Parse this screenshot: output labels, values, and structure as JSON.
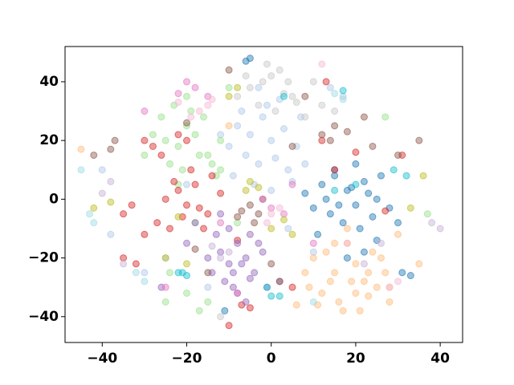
{
  "chart_data": {
    "type": "scatter",
    "xlim": [
      -48.8,
      45.3
    ],
    "ylim": [
      -48.8,
      52
    ],
    "xticks": [
      {
        "value": -40,
        "label": "−40"
      },
      {
        "value": -20,
        "label": "−20"
      },
      0,
      20,
      40
    ],
    "yticks": [
      {
        "value": -40,
        "label": "−40"
      },
      {
        "value": -20,
        "label": "−20"
      },
      0,
      20,
      40
    ],
    "series": [
      {
        "color": "#1f77b4",
        "x": [
          12,
          15,
          18,
          20,
          22,
          25,
          10,
          14,
          17,
          21,
          24,
          28,
          8,
          13,
          16,
          19,
          23,
          26,
          30,
          11,
          15,
          20,
          25,
          18,
          22,
          33,
          -6,
          -5,
          31,
          -11
        ],
        "y": [
          5,
          8,
          3,
          -2,
          6,
          0,
          -3,
          -5,
          -8,
          -10,
          -6,
          -3,
          2,
          0,
          -2,
          4,
          2,
          8,
          -8,
          -12,
          10,
          12,
          -14,
          -20,
          -18,
          -26,
          47,
          48,
          -25,
          -38
        ]
      },
      {
        "color": "#aec7e8",
        "x": [
          -8,
          -5,
          -2,
          0,
          3,
          6,
          -6,
          -3,
          1,
          4,
          -9,
          -4,
          0,
          5,
          8,
          -7,
          -1,
          2,
          7,
          -10,
          -12,
          -3,
          4,
          10,
          -15,
          -25,
          -40,
          -38,
          -30,
          -20,
          14,
          17
        ],
        "y": [
          25,
          22,
          28,
          20,
          24,
          18,
          15,
          12,
          14,
          10,
          8,
          5,
          3,
          6,
          12,
          30,
          32,
          34,
          28,
          18,
          22,
          38,
          -10,
          -18,
          -30,
          -20,
          10,
          -12,
          -25,
          5,
          38,
          35
        ]
      },
      {
        "color": "#ffbb78",
        "x": [
          10,
          13,
          15,
          18,
          20,
          22,
          25,
          27,
          12,
          16,
          19,
          23,
          26,
          28,
          14,
          17,
          21,
          24,
          9,
          11,
          20,
          23,
          30,
          18,
          15,
          6,
          8,
          28,
          -45,
          -10,
          35
        ],
        "y": [
          -20,
          -18,
          -25,
          -15,
          -22,
          -28,
          -30,
          -25,
          -32,
          -35,
          -28,
          -33,
          -20,
          -35,
          -28,
          -38,
          -38,
          -18,
          -30,
          -36,
          -32,
          -25,
          -12,
          -10,
          -15,
          -36,
          -25,
          -30,
          17,
          25,
          -22
        ]
      },
      {
        "color": "#98df8a",
        "x": [
          -25,
          -22,
          -20,
          -18,
          -15,
          -12,
          -24,
          -21,
          -17,
          -14,
          -26,
          -23,
          -19,
          -16,
          -13,
          -28,
          -20,
          -22,
          -18,
          -15,
          -30,
          -10,
          -12,
          27,
          37,
          -25,
          -20,
          -8,
          -17,
          -24
        ],
        "y": [
          20,
          18,
          25,
          22,
          15,
          20,
          12,
          10,
          15,
          12,
          28,
          32,
          30,
          28,
          8,
          22,
          35,
          5,
          -8,
          -35,
          15,
          38,
          10,
          28,
          -5,
          -35,
          -32,
          -8,
          -38,
          -25
        ]
      },
      {
        "color": "#d62728",
        "x": [
          -25,
          -22,
          -20,
          -18,
          -15,
          -12,
          -27,
          -24,
          -21,
          -17,
          -14,
          -30,
          -28,
          -19,
          -16,
          -23,
          -33,
          -35,
          -30,
          -26,
          -20,
          -8,
          5,
          12,
          15,
          20,
          27,
          31,
          -35,
          -32,
          -10,
          -5,
          13,
          -22,
          -7
        ],
        "y": [
          0,
          3,
          -2,
          5,
          -5,
          2,
          -8,
          -10,
          -6,
          -3,
          8,
          20,
          18,
          10,
          -10,
          6,
          -2,
          -5,
          -12,
          15,
          20,
          -14,
          -30,
          20,
          10,
          16,
          -4,
          15,
          -20,
          -22,
          -43,
          -37,
          40,
          22,
          -36
        ]
      },
      {
        "color": "#9467bd",
        "x": [
          -12,
          -10,
          -8,
          -6,
          -4,
          -2,
          -14,
          -11,
          -9,
          -7,
          -5,
          -3,
          -13,
          -10,
          -8,
          -6,
          -15,
          -1,
          -18,
          -20,
          -5,
          2,
          -9,
          -12,
          -26
        ],
        "y": [
          -18,
          -22,
          -15,
          -20,
          -25,
          -18,
          -25,
          -28,
          -30,
          -22,
          -27,
          -15,
          -12,
          -10,
          -32,
          -35,
          -20,
          -30,
          -8,
          -15,
          -12,
          -28,
          -25,
          -5,
          -30
        ]
      },
      {
        "color": "#8c564b",
        "x": [
          -5,
          -3,
          -7,
          -2,
          -4,
          -8,
          5,
          12,
          15,
          -20,
          -42,
          -38,
          0,
          2,
          -10,
          18,
          24,
          30,
          35,
          -18,
          22,
          14,
          -15,
          8,
          -37
        ],
        "y": [
          -2,
          -5,
          -4,
          0,
          -8,
          -6,
          18,
          22,
          25,
          26,
          15,
          17,
          -22,
          -28,
          44,
          23,
          18,
          15,
          20,
          -17,
          28,
          20,
          -25,
          35,
          20
        ]
      },
      {
        "color": "#e377c2",
        "x": [
          -20,
          -18,
          -15,
          -22,
          0,
          3,
          -2,
          5,
          -25,
          -30,
          10,
          -12,
          -8
        ],
        "y": [
          40,
          38,
          35,
          36,
          -3,
          -5,
          0,
          5,
          -30,
          30,
          -15,
          -8,
          -32
        ]
      },
      {
        "color": "#c7c7c7",
        "x": [
          -5,
          -2,
          0,
          3,
          5,
          -8,
          -3,
          1,
          6,
          8,
          -6,
          2,
          4,
          12,
          15,
          10,
          -1,
          -12
        ],
        "y": [
          38,
          40,
          42,
          36,
          35,
          35,
          32,
          30,
          33,
          28,
          42,
          44,
          40,
          32,
          30,
          40,
          46,
          -40
        ]
      },
      {
        "color": "#bcbd22",
        "x": [
          -8,
          -5,
          -3,
          -10,
          -42,
          -38,
          0,
          3,
          -25,
          -20,
          36,
          33,
          -6,
          5,
          -22
        ],
        "y": [
          38,
          6,
          4,
          35,
          -3,
          -1,
          -10,
          -7,
          -20,
          -22,
          8,
          -3,
          3,
          -12,
          -6
        ]
      },
      {
        "color": "#17becf",
        "x": [
          3,
          0,
          -21,
          -20,
          -22,
          29,
          20,
          15,
          17,
          -1,
          2,
          32
        ],
        "y": [
          35,
          -33,
          -25,
          -26,
          -25,
          10,
          5,
          3,
          37,
          -30,
          -33,
          8
        ]
      },
      {
        "color": "#f7b6d2",
        "x": [
          -17,
          -15,
          -19,
          -14,
          0,
          2,
          -1,
          12,
          28,
          30,
          18,
          -22
        ],
        "y": [
          30,
          32,
          28,
          34,
          -5,
          -3,
          -8,
          46,
          -30,
          -28,
          -15,
          33
        ]
      },
      {
        "color": "#c5b0d5",
        "x": [
          -40,
          -38,
          -35,
          -10,
          -12,
          -14,
          40,
          38,
          26,
          22
        ],
        "y": [
          2,
          6,
          -22,
          -18,
          -20,
          -16,
          -10,
          -8,
          -15,
          -22
        ]
      },
      {
        "color": "#9edae5",
        "x": [
          -45,
          -43,
          -42,
          15,
          17,
          -30,
          -32,
          10
        ],
        "y": [
          10,
          -5,
          -8,
          36,
          34,
          -28,
          -25,
          -35
        ]
      }
    ]
  }
}
